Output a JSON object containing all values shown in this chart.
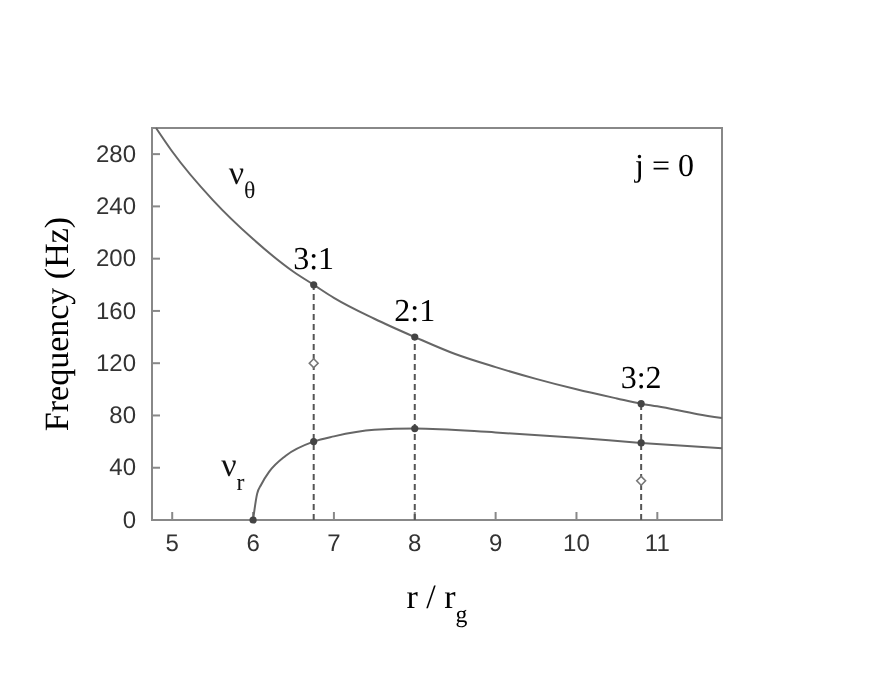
{
  "chart_data": {
    "type": "line",
    "xlabel": "r / r$_{g}$",
    "ylabel": "Frequency (Hz)",
    "xlim": [
      4.75,
      11.8
    ],
    "xticks": [
      5,
      6,
      7,
      8,
      9,
      10,
      11
    ],
    "ylim": [
      0,
      300
    ],
    "yticks": [
      0,
      40,
      80,
      120,
      160,
      200,
      240,
      280
    ],
    "grid": false,
    "marker": "none",
    "line_style": "solid",
    "annotations": [
      "j = 0",
      {
        "text": "3:1",
        "x": 6.75,
        "y": 180
      },
      {
        "text": "2:1",
        "x": 8,
        "y": 140
      },
      {
        "text": "3:2",
        "x": 10.8,
        "y": 89
      }
    ],
    "series": [
      {
        "name": "ν$_{θ}$",
        "color": "#666666",
        "x": [
          4.8,
          5,
          5.5,
          6,
          6.5,
          6.75,
          7,
          7.5,
          8,
          8.5,
          9,
          9.5,
          10,
          10.5,
          10.8,
          11,
          11.5,
          11.8
        ],
        "values": [
          300,
          282,
          245,
          215,
          190,
          180,
          170,
          154,
          140,
          127,
          117,
          108,
          100,
          93,
          89,
          87,
          81,
          78
        ]
      },
      {
        "name": "ν$_{r}$",
        "color": "#666666",
        "x": [
          6,
          6.05,
          6.1,
          6.2,
          6.4,
          6.75,
          7,
          7.5,
          8,
          9,
          10,
          10.8,
          11.8
        ],
        "values": [
          0,
          20,
          27,
          37,
          49,
          60,
          64,
          69,
          70,
          67,
          63,
          59,
          55
        ]
      },
      {
        "type": "line",
        "line_style": "dashed",
        "color": "#555555",
        "x": [
          6.75,
          6.75
        ],
        "values": [
          0,
          180
        ]
      },
      {
        "type": "line",
        "line_style": "dashed",
        "color": "#555555",
        "x": [
          8,
          8
        ],
        "values": [
          0,
          140
        ]
      },
      {
        "type": "line",
        "line_style": "dashed",
        "color": "#555555",
        "x": [
          10.8,
          10.8
        ],
        "values": [
          0,
          89
        ]
      },
      {
        "type": "scatter",
        "marker": "circle",
        "color": "#444444",
        "x": [
          6,
          6.75,
          6.75,
          8,
          8,
          10.8,
          10.8
        ],
        "values": [
          0,
          180,
          60,
          140,
          70,
          89,
          59
        ]
      },
      {
        "type": "scatter",
        "marker": "diamond",
        "color": "#777777",
        "x": [
          6.75,
          10.8
        ],
        "values": [
          120,
          30
        ]
      }
    ]
  }
}
